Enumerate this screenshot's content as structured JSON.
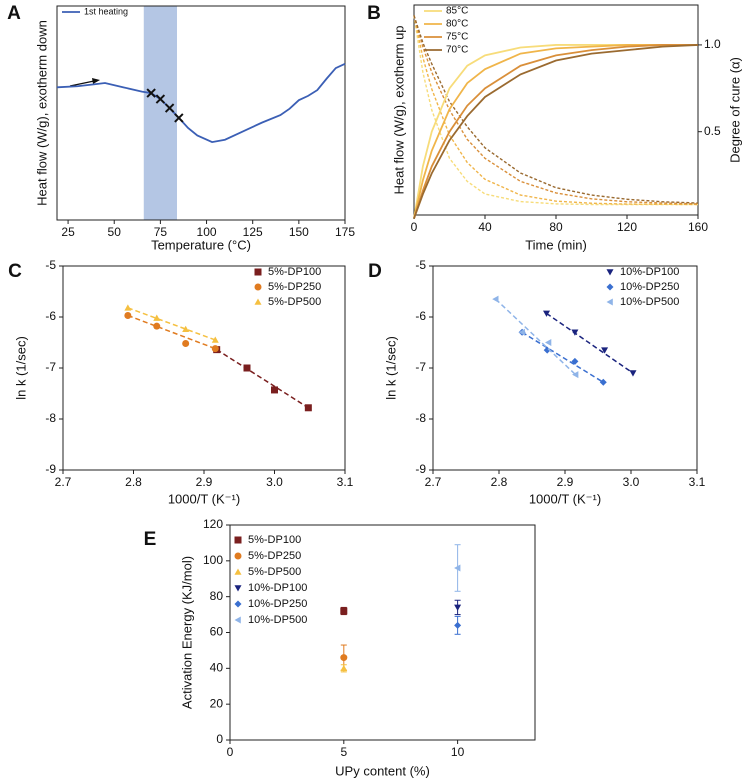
{
  "chart_data": [
    {
      "type": "line",
      "panel": "A",
      "xlabel": "Temperature (°C)",
      "ylabel": "Heat flow (W/g), exotherm down",
      "x": [
        19,
        30,
        40,
        45,
        55,
        65,
        70,
        75,
        80,
        85,
        90,
        95,
        103,
        110,
        120,
        130,
        140,
        145,
        150,
        155,
        160,
        165,
        170,
        175
      ],
      "series": [
        {
          "name": "1st heating",
          "color": "#3b5fb5",
          "values": [
            62,
            62.5,
            63.5,
            64,
            62,
            60,
            59.3,
            56.5,
            52.3,
            47.7,
            43,
            39.5,
            36.4,
            37.5,
            41.5,
            45.5,
            49,
            52,
            56,
            58,
            60.7,
            66,
            71,
            73
          ]
        }
      ],
      "crosses": {
        "x": [
          70,
          75,
          80,
          85
        ],
        "values": [
          59.3,
          56.5,
          52.3,
          47.7
        ],
        "color": "#111111"
      },
      "highlight": [
        66,
        84
      ],
      "highlight_color": "#b4c6e4",
      "xlim": [
        19,
        175
      ],
      "xticks": [
        25,
        50,
        75,
        100,
        125,
        150,
        175
      ],
      "ylim": [
        0,
        100
      ]
    },
    {
      "type": "line",
      "panel": "B",
      "xlabel": "Time (min)",
      "ylabel": "Heat flow (W/g), exotherm up",
      "y2label": "Degree of cure (α)",
      "x": [
        0,
        5,
        10,
        20,
        30,
        40,
        60,
        80,
        100,
        120,
        140,
        160
      ],
      "series": [
        {
          "name": "85°C",
          "color": "#f7dc7a",
          "axis": "y2",
          "values": [
            0,
            0.3,
            0.5,
            0.75,
            0.88,
            0.94,
            0.985,
            1.0,
            1.0,
            1.0,
            1.0,
            1.0
          ]
        },
        {
          "name": "80°C",
          "color": "#f0b54a",
          "axis": "y2",
          "values": [
            0,
            0.22,
            0.39,
            0.63,
            0.78,
            0.86,
            0.95,
            0.98,
            0.99,
            1.0,
            1.0,
            1.0
          ]
        },
        {
          "name": "75°C",
          "color": "#d98f3a",
          "axis": "y2",
          "values": [
            0,
            0.16,
            0.3,
            0.5,
            0.65,
            0.75,
            0.88,
            0.94,
            0.97,
            0.99,
            1.0,
            1.0
          ]
        },
        {
          "name": "70°C",
          "color": "#9a6a30",
          "axis": "y2",
          "values": [
            0,
            0.14,
            0.26,
            0.45,
            0.59,
            0.7,
            0.83,
            0.91,
            0.95,
            0.97,
            0.99,
            1.0
          ]
        }
      ],
      "heat_flow_series": [
        {
          "color": "#f7dc7a",
          "values": [
            95,
            68,
            50,
            27,
            16,
            10,
            6.4,
            5.3,
            5,
            5,
            5,
            5
          ]
        },
        {
          "color": "#f0b54a",
          "values": [
            95,
            75,
            60,
            38,
            25,
            17,
            9.5,
            6.6,
            5.6,
            5.2,
            5.1,
            5
          ]
        },
        {
          "color": "#d98f3a",
          "values": [
            95,
            80,
            68,
            50,
            36,
            27,
            16,
            10.5,
            7.7,
            6.3,
            5.7,
            5.3
          ]
        },
        {
          "color": "#9a6a30",
          "values": [
            95,
            82,
            72,
            54,
            42,
            32,
            20,
            13,
            9.5,
            7.5,
            6.3,
            5.7
          ]
        }
      ],
      "xlim": [
        0,
        160
      ],
      "xticks": [
        0,
        40,
        80,
        120,
        160
      ],
      "ylim": [
        0,
        100
      ],
      "y2lim": [
        0.02,
        1.23
      ],
      "y2ticks": [
        0.5,
        {
          "value": 1,
          "label": "1.0"
        }
      ]
    },
    {
      "type": "scatter",
      "panel": "C",
      "xlabel": "1000/T (K⁻¹)",
      "ylabel": "ln k (1/sec)",
      "fit": true,
      "series": [
        {
          "name": "5%-DP100",
          "color": "#7a1f1f",
          "marker": "square",
          "x": [
            2.918,
            2.961,
            3.0,
            3.048
          ],
          "values": [
            -6.64,
            -7.0,
            -7.43,
            -7.78
          ]
        },
        {
          "name": "5%-DP250",
          "color": "#e07b20",
          "marker": "circle",
          "x": [
            2.792,
            2.833,
            2.874,
            2.916
          ],
          "values": [
            -5.97,
            -6.18,
            -6.52,
            -6.62
          ]
        },
        {
          "name": "5%-DP500",
          "color": "#f5c040",
          "marker": "triangle",
          "x": [
            2.792,
            2.833,
            2.874,
            2.916
          ],
          "values": [
            -5.82,
            -6.02,
            -6.24,
            -6.45
          ]
        }
      ],
      "xlim": [
        2.7,
        3.1
      ],
      "xticks": [
        2.7,
        2.8,
        2.9,
        {
          "value": 3,
          "label": "3.0"
        },
        3.1
      ],
      "ylim": [
        -9,
        -5
      ],
      "yticks": [
        -9,
        -8,
        -7,
        -6,
        -5
      ]
    },
    {
      "type": "scatter",
      "panel": "D",
      "xlabel": "1000/T (K⁻¹)",
      "ylabel": "ln k (1/sec)",
      "fit": true,
      "series": [
        {
          "name": "10%-DP100",
          "color": "#1a237e",
          "marker": "triangle-down",
          "x": [
            2.872,
            2.915,
            2.96,
            3.003
          ],
          "values": [
            -5.93,
            -6.3,
            -6.65,
            -7.1
          ]
        },
        {
          "name": "10%-DP250",
          "color": "#3a6fd0",
          "marker": "diamond",
          "x": [
            2.835,
            2.873,
            2.915,
            2.958
          ],
          "values": [
            -6.3,
            -6.65,
            -6.87,
            -7.28
          ]
        },
        {
          "name": "10%-DP500",
          "color": "#8fb4e8",
          "marker": "triangle-left",
          "x": [
            2.795,
            2.835,
            2.875,
            2.916
          ],
          "values": [
            -5.65,
            -6.3,
            -6.5,
            -7.13
          ]
        }
      ],
      "xlim": [
        2.7,
        3.1
      ],
      "xticks": [
        2.7,
        2.8,
        2.9,
        {
          "value": 3,
          "label": "3.0"
        },
        3.1
      ],
      "ylim": [
        -9,
        -5
      ],
      "yticks": [
        -9,
        -8,
        -7,
        -6,
        -5
      ]
    },
    {
      "type": "scatter",
      "panel": "E",
      "xlabel": "UPy content (%)",
      "ylabel": "Activation Energy (KJ/mol)",
      "series": [
        {
          "name": "5%-DP100",
          "color": "#7a1f1f",
          "marker": "square",
          "x": [
            5
          ],
          "values": [
            72
          ],
          "errors": [
            2
          ]
        },
        {
          "name": "5%-DP250",
          "color": "#e07b20",
          "marker": "circle",
          "x": [
            5
          ],
          "values": [
            46
          ],
          "errors": [
            7
          ]
        },
        {
          "name": "5%-DP500",
          "color": "#f5c040",
          "marker": "triangle",
          "x": [
            5
          ],
          "values": [
            40
          ],
          "errors": [
            2
          ]
        },
        {
          "name": "10%-DP100",
          "color": "#1a237e",
          "marker": "triangle-down",
          "x": [
            10
          ],
          "values": [
            74
          ],
          "errors": [
            4
          ]
        },
        {
          "name": "10%-DP250",
          "color": "#3a6fd0",
          "marker": "diamond",
          "x": [
            10
          ],
          "values": [
            64
          ],
          "errors": [
            5
          ]
        },
        {
          "name": "10%-DP500",
          "color": "#8fb4e8",
          "marker": "triangle-left",
          "x": [
            10
          ],
          "values": [
            96
          ],
          "errors": [
            13
          ]
        }
      ],
      "xlim": [
        0,
        13.4
      ],
      "xticks": [
        0,
        5,
        10
      ],
      "ylim": [
        0,
        120
      ],
      "yticks": [
        0,
        20,
        40,
        60,
        80,
        100,
        120
      ]
    }
  ]
}
